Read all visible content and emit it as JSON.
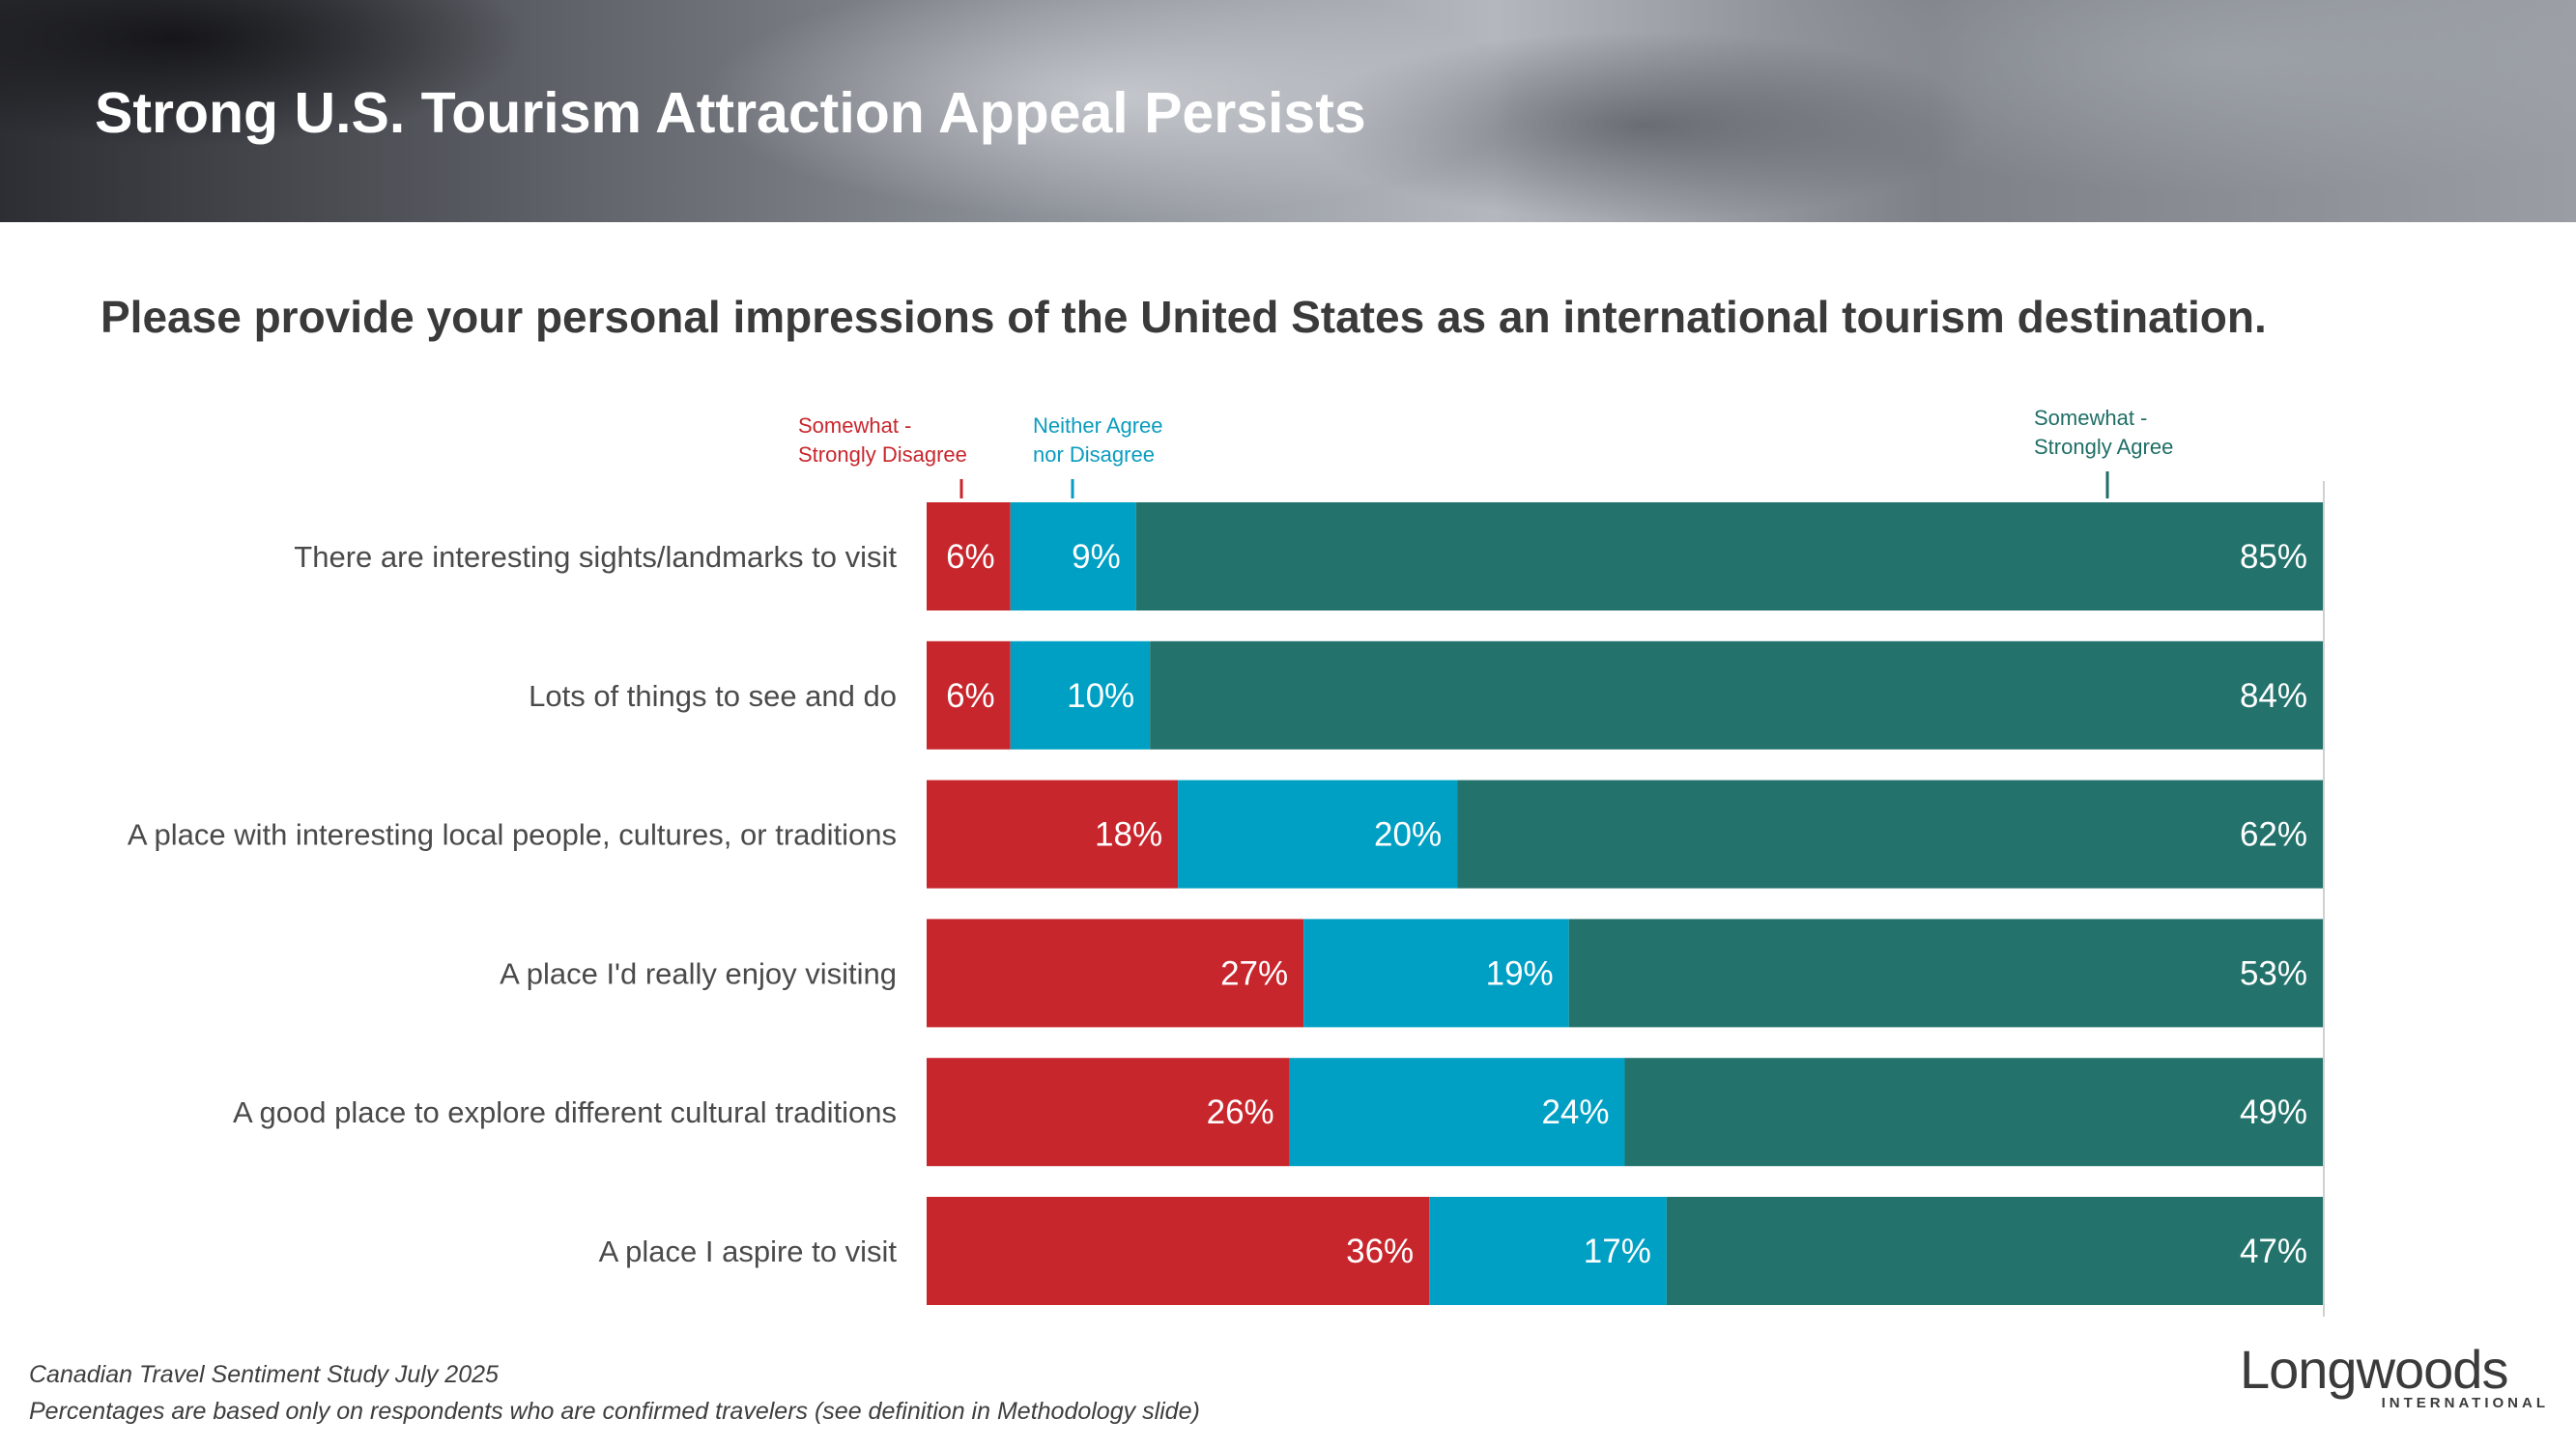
{
  "slide": {
    "title": "Strong U.S. Tourism Attraction Appeal Persists",
    "question": "Please provide your personal impressions of the United States as an international tourism destination."
  },
  "colors": {
    "disagree": "#c8262d",
    "neutral": "#00a0c4",
    "agree": "#23736c",
    "neutral_legend": "#0a9cbe",
    "agree_legend": "#1f6e66"
  },
  "chart_data": {
    "type": "bar",
    "orientation": "horizontal",
    "stacked": true,
    "xlim": [
      0,
      100
    ],
    "categories": [
      "There are interesting sights/landmarks to visit",
      "Lots of things to see and do",
      "A place with interesting local people, cultures, or traditions",
      "A place I'd really enjoy visiting",
      "A good place to explore different cultural traditions",
      "A place I aspire to visit"
    ],
    "series": [
      {
        "name": "Somewhat - Strongly Disagree",
        "legend_lines": [
          "Somewhat -",
          "Strongly Disagree"
        ],
        "values": [
          6,
          6,
          18,
          27,
          26,
          36
        ],
        "labels": [
          "6%",
          "6%",
          "18%",
          "27%",
          "26%",
          "36%"
        ]
      },
      {
        "name": "Neither Agree nor Disagree",
        "legend_lines": [
          "Neither Agree",
          "nor Disagree"
        ],
        "values": [
          9,
          10,
          20,
          19,
          24,
          17
        ],
        "labels": [
          "9%",
          "10%",
          "20%",
          "19%",
          "24%",
          "17%"
        ]
      },
      {
        "name": "Somewhat - Strongly Agree",
        "legend_lines": [
          "Somewhat -",
          "Strongly Agree"
        ],
        "values": [
          85,
          84,
          62,
          53,
          49,
          47
        ],
        "labels": [
          "85%",
          "84%",
          "62%",
          "53%",
          "49%",
          "47%"
        ]
      }
    ]
  },
  "footnotes": {
    "source": "Canadian Travel Sentiment Study July 2025",
    "note": "Percentages are based only on respondents who are confirmed travelers (see definition in Methodology slide)"
  },
  "logo": {
    "name": "Longwoods",
    "tagline": "INTERNATIONAL"
  }
}
